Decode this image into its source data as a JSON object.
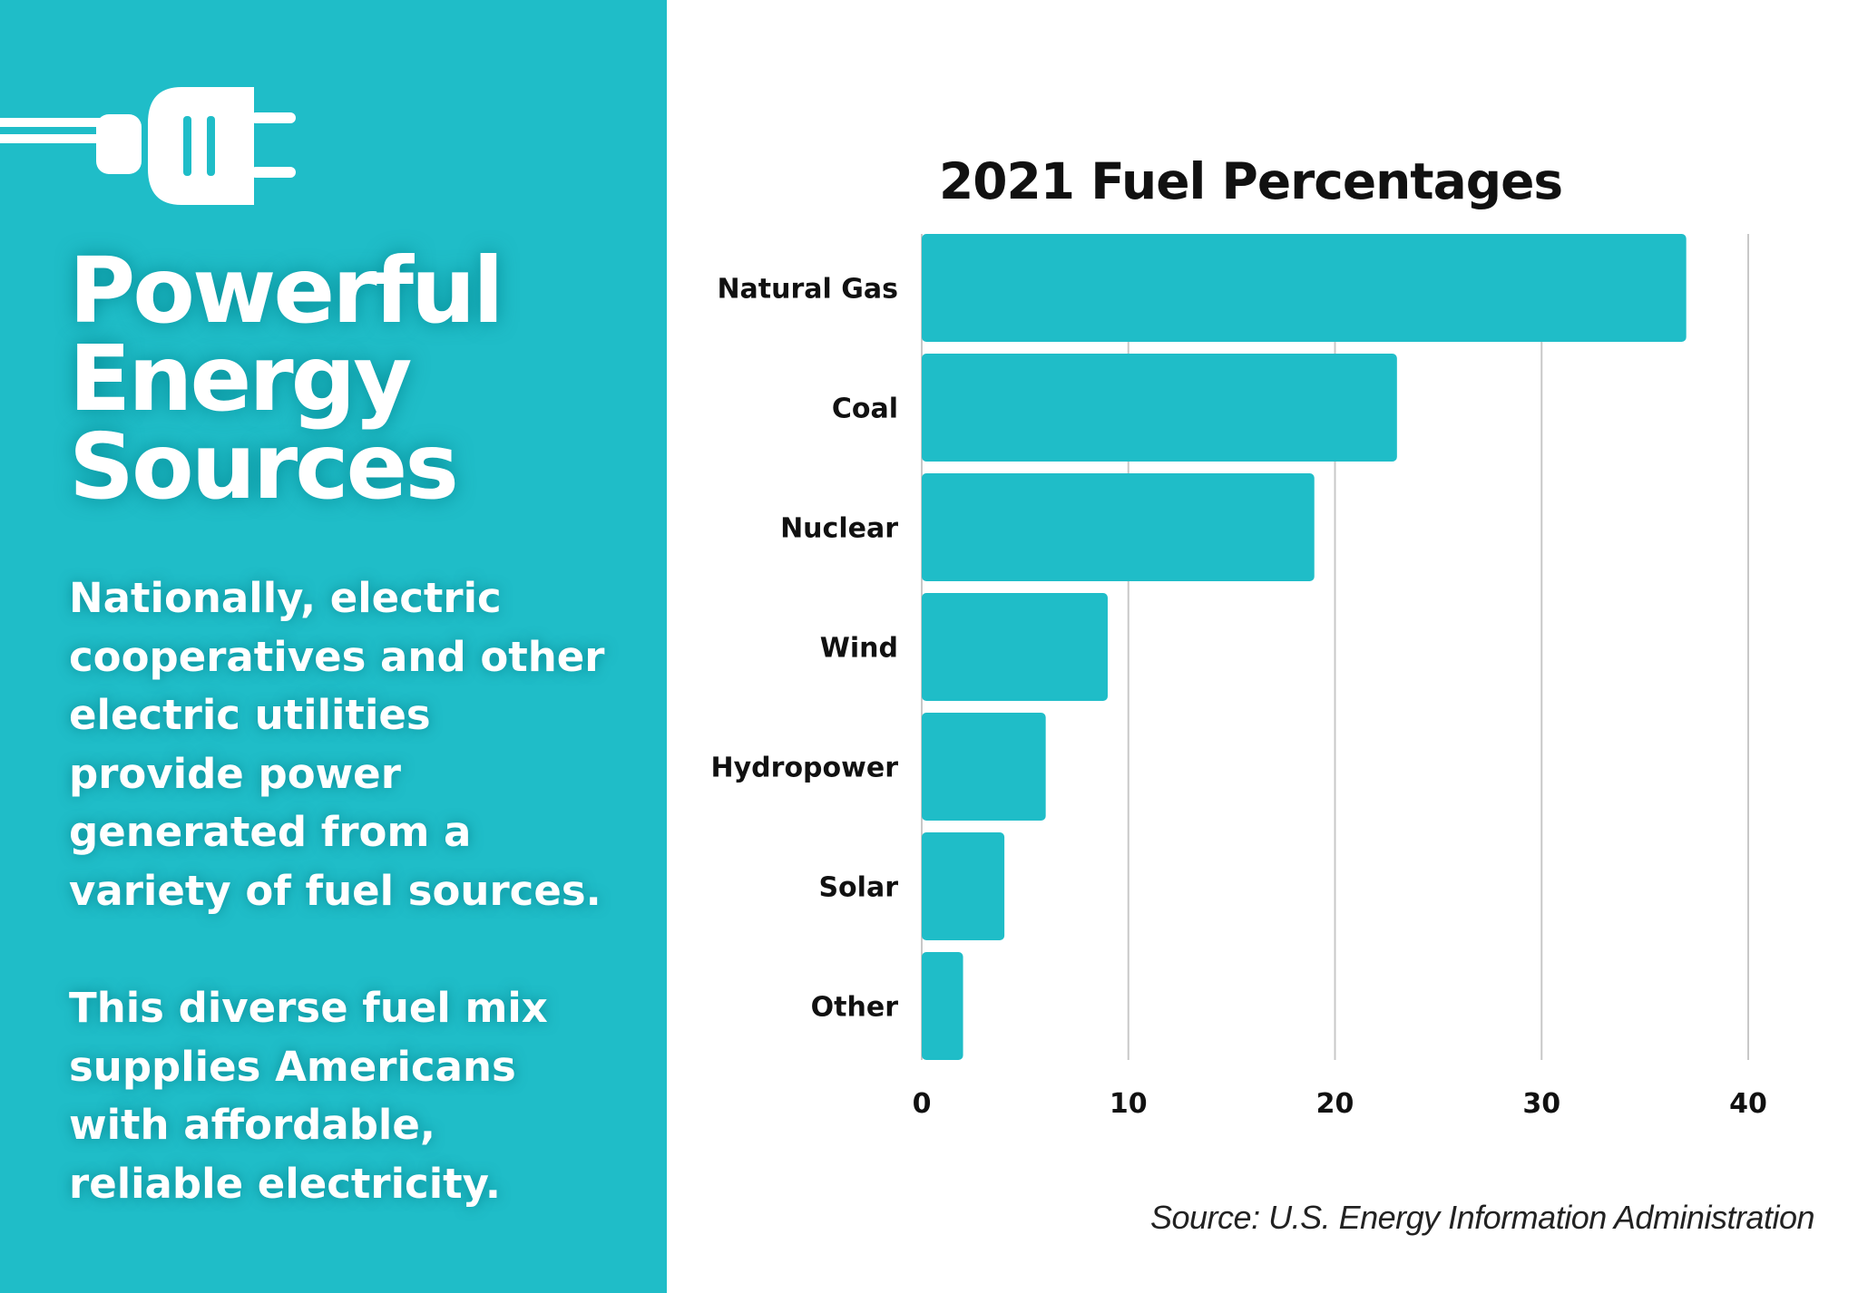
{
  "left_panel": {
    "background": "#1fbdc8",
    "icon": "plug-icon",
    "headline": [
      "Powerful",
      "Energy",
      "Sources"
    ],
    "paragraph1": [
      "Nationally, electric",
      "cooperatives and other",
      "electric utilities",
      "provide power",
      "generated from a",
      "variety of fuel sources."
    ],
    "paragraph2": [
      "This diverse fuel mix",
      "supplies Americans",
      "with affordable,",
      "reliable electricity."
    ]
  },
  "chart_data": {
    "type": "bar",
    "orientation": "horizontal",
    "title": "2021 Fuel Percentages",
    "categories": [
      "Natural Gas",
      "Coal",
      "Nuclear",
      "Wind",
      "Hydropower",
      "Solar",
      "Other"
    ],
    "values": [
      37,
      23,
      19,
      9,
      6,
      4,
      2
    ],
    "xlim": [
      0,
      40
    ],
    "xticks": [
      0,
      10,
      20,
      30,
      40
    ],
    "grid": true,
    "bar_color": "#1fbdc8",
    "xlabel": "",
    "ylabel": ""
  },
  "source": "Source: U.S. Energy Information Administration"
}
